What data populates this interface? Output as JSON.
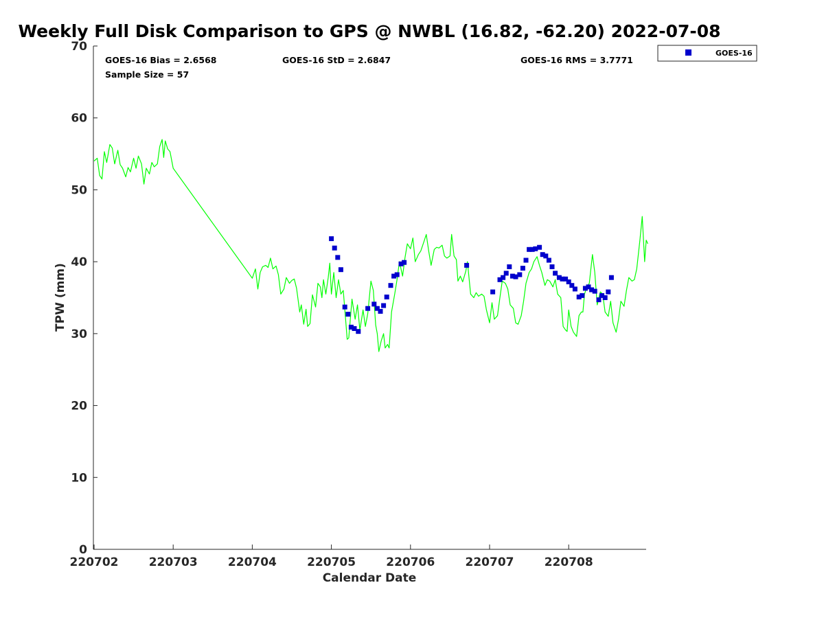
{
  "chart_data": {
    "type": "scatter",
    "title": "Weekly Full Disk Comparison to GPS @ NWBL (16.82, -62.20) 2022-07-08",
    "xlabel": "Calendar Date",
    "ylabel": "TPW (mm)",
    "xlim": [
      0.03,
      7.0
    ],
    "ylim": [
      0,
      70
    ],
    "x_tick_labels": [
      "220702",
      "220703",
      "220704",
      "220705",
      "220706",
      "220707",
      "220708"
    ],
    "x_tick_positions": [
      0,
      1,
      2,
      3,
      4,
      5,
      6
    ],
    "y_ticks": [
      0,
      10,
      20,
      30,
      40,
      50,
      60,
      70
    ],
    "stats": {
      "bias": "GOES-16 Bias = 2.6568",
      "std": "GOES-16 StD = 2.6847",
      "rms": "GOES-16 RMS = 3.7771",
      "sample": "Sample Size = 57"
    },
    "legend": {
      "label": "GOES-16",
      "placement": "top-right-outside"
    },
    "series": [
      {
        "name": "GPS",
        "type": "line",
        "color": "#00ff00",
        "points": [
          [
            0.0,
            54.0
          ],
          [
            0.04,
            54.4
          ],
          [
            0.07,
            52.0
          ],
          [
            0.1,
            51.5
          ],
          [
            0.13,
            55.3
          ],
          [
            0.16,
            53.8
          ],
          [
            0.2,
            56.3
          ],
          [
            0.23,
            55.8
          ],
          [
            0.26,
            53.6
          ],
          [
            0.3,
            55.5
          ],
          [
            0.33,
            53.5
          ],
          [
            0.36,
            53.0
          ],
          [
            0.4,
            51.8
          ],
          [
            0.43,
            53.1
          ],
          [
            0.46,
            52.5
          ],
          [
            0.5,
            54.4
          ],
          [
            0.53,
            53.0
          ],
          [
            0.56,
            54.7
          ],
          [
            0.6,
            53.6
          ],
          [
            0.63,
            50.8
          ],
          [
            0.66,
            53.0
          ],
          [
            0.7,
            52.2
          ],
          [
            0.73,
            53.8
          ],
          [
            0.76,
            53.2
          ],
          [
            0.8,
            53.6
          ],
          [
            0.83,
            56.0
          ],
          [
            0.86,
            57.0
          ],
          [
            0.88,
            54.5
          ],
          [
            0.9,
            56.8
          ],
          [
            0.93,
            55.7
          ],
          [
            0.96,
            55.3
          ],
          [
            1.0,
            53.0
          ],
          [
            2.0,
            37.7
          ],
          [
            2.04,
            39.0
          ],
          [
            2.07,
            36.2
          ],
          [
            2.1,
            38.5
          ],
          [
            2.13,
            39.3
          ],
          [
            2.17,
            39.5
          ],
          [
            2.2,
            39.2
          ],
          [
            2.23,
            40.5
          ],
          [
            2.26,
            39.0
          ],
          [
            2.3,
            39.4
          ],
          [
            2.33,
            38.2
          ],
          [
            2.36,
            35.5
          ],
          [
            2.4,
            36.2
          ],
          [
            2.43,
            37.8
          ],
          [
            2.47,
            37.0
          ],
          [
            2.5,
            37.4
          ],
          [
            2.53,
            37.6
          ],
          [
            2.56,
            36.3
          ],
          [
            2.6,
            33.0
          ],
          [
            2.62,
            34.0
          ],
          [
            2.65,
            31.3
          ],
          [
            2.68,
            33.4
          ],
          [
            2.7,
            31.0
          ],
          [
            2.73,
            31.4
          ],
          [
            2.76,
            35.4
          ],
          [
            2.8,
            33.7
          ],
          [
            2.83,
            37.0
          ],
          [
            2.86,
            36.5
          ],
          [
            2.88,
            35.0
          ],
          [
            2.9,
            37.5
          ],
          [
            2.93,
            35.5
          ],
          [
            2.96,
            37.8
          ],
          [
            2.98,
            39.8
          ],
          [
            3.0,
            35.5
          ],
          [
            3.03,
            38.5
          ],
          [
            3.06,
            35.0
          ],
          [
            3.09,
            37.5
          ],
          [
            3.12,
            35.5
          ],
          [
            3.15,
            36.0
          ],
          [
            3.18,
            32.0
          ],
          [
            3.2,
            29.2
          ],
          [
            3.22,
            29.4
          ],
          [
            3.26,
            34.8
          ],
          [
            3.3,
            32.0
          ],
          [
            3.33,
            34.0
          ],
          [
            3.36,
            30.5
          ],
          [
            3.4,
            33.3
          ],
          [
            3.43,
            31.0
          ],
          [
            3.46,
            32.8
          ],
          [
            3.5,
            37.3
          ],
          [
            3.53,
            36.0
          ],
          [
            3.56,
            31.2
          ],
          [
            3.58,
            30.0
          ],
          [
            3.6,
            27.5
          ],
          [
            3.63,
            29.0
          ],
          [
            3.66,
            30.0
          ],
          [
            3.68,
            28.0
          ],
          [
            3.71,
            28.5
          ],
          [
            3.73,
            28.0
          ],
          [
            3.76,
            33.0
          ],
          [
            3.8,
            35.5
          ],
          [
            3.83,
            37.5
          ],
          [
            3.86,
            40.0
          ],
          [
            3.9,
            38.0
          ],
          [
            3.93,
            40.5
          ],
          [
            3.96,
            42.5
          ],
          [
            4.0,
            41.8
          ],
          [
            4.03,
            43.3
          ],
          [
            4.06,
            40.0
          ],
          [
            4.1,
            41.0
          ],
          [
            4.13,
            41.5
          ],
          [
            4.17,
            42.8
          ],
          [
            4.2,
            43.8
          ],
          [
            4.23,
            41.5
          ],
          [
            4.26,
            39.5
          ],
          [
            4.3,
            41.7
          ],
          [
            4.33,
            42.0
          ],
          [
            4.36,
            41.9
          ],
          [
            4.4,
            42.3
          ],
          [
            4.43,
            40.8
          ],
          [
            4.46,
            40.5
          ],
          [
            4.5,
            40.8
          ],
          [
            4.52,
            43.8
          ],
          [
            4.55,
            40.8
          ],
          [
            4.58,
            40.3
          ],
          [
            4.6,
            37.3
          ],
          [
            4.63,
            38.0
          ],
          [
            4.66,
            37.2
          ],
          [
            4.7,
            38.7
          ],
          [
            4.72,
            40.0
          ],
          [
            4.76,
            35.5
          ],
          [
            4.8,
            35.0
          ],
          [
            4.83,
            35.7
          ],
          [
            4.86,
            35.2
          ],
          [
            4.9,
            35.5
          ],
          [
            4.93,
            35.2
          ],
          [
            4.96,
            33.3
          ],
          [
            5.0,
            31.5
          ],
          [
            5.03,
            34.3
          ],
          [
            5.06,
            32.0
          ],
          [
            5.1,
            32.5
          ],
          [
            5.13,
            35.0
          ],
          [
            5.16,
            37.3
          ],
          [
            5.2,
            37.0
          ],
          [
            5.23,
            36.2
          ],
          [
            5.26,
            34.0
          ],
          [
            5.3,
            33.5
          ],
          [
            5.33,
            31.5
          ],
          [
            5.36,
            31.3
          ],
          [
            5.4,
            32.5
          ],
          [
            5.43,
            34.5
          ],
          [
            5.46,
            37.0
          ],
          [
            5.5,
            38.5
          ],
          [
            5.53,
            39.0
          ],
          [
            5.56,
            40.0
          ],
          [
            5.6,
            40.7
          ],
          [
            5.63,
            39.5
          ],
          [
            5.66,
            38.5
          ],
          [
            5.7,
            36.7
          ],
          [
            5.73,
            37.5
          ],
          [
            5.76,
            37.3
          ],
          [
            5.8,
            36.5
          ],
          [
            5.83,
            37.5
          ],
          [
            5.86,
            35.5
          ],
          [
            5.9,
            35.0
          ],
          [
            5.93,
            31.0
          ],
          [
            5.96,
            30.5
          ],
          [
            5.98,
            30.3
          ],
          [
            6.0,
            33.3
          ],
          [
            6.03,
            31.0
          ],
          [
            6.06,
            30.2
          ],
          [
            6.1,
            29.6
          ],
          [
            6.13,
            32.5
          ],
          [
            6.16,
            33.0
          ],
          [
            6.18,
            33.0
          ],
          [
            6.2,
            35.5
          ],
          [
            6.23,
            36.5
          ],
          [
            6.26,
            37.0
          ],
          [
            6.3,
            41.0
          ],
          [
            6.33,
            38.5
          ],
          [
            6.36,
            34.0
          ],
          [
            6.4,
            35.8
          ],
          [
            6.43,
            35.5
          ],
          [
            6.46,
            33.0
          ],
          [
            6.5,
            32.4
          ],
          [
            6.53,
            34.5
          ],
          [
            6.56,
            31.5
          ],
          [
            6.6,
            30.2
          ],
          [
            6.63,
            32.0
          ],
          [
            6.66,
            34.5
          ],
          [
            6.7,
            33.8
          ],
          [
            6.73,
            36.0
          ],
          [
            6.76,
            37.8
          ],
          [
            6.8,
            37.3
          ],
          [
            6.83,
            37.5
          ],
          [
            6.86,
            39.0
          ],
          [
            6.9,
            43.0
          ],
          [
            6.93,
            46.3
          ],
          [
            6.96,
            40.0
          ],
          [
            6.98,
            43.0
          ],
          [
            7.0,
            42.5
          ]
        ]
      },
      {
        "name": "GOES-16",
        "type": "scatter",
        "color": "#0000cc",
        "marker": "square",
        "points": [
          [
            3.0,
            43.2
          ],
          [
            3.04,
            41.9
          ],
          [
            3.08,
            40.6
          ],
          [
            3.12,
            38.9
          ],
          [
            3.17,
            33.7
          ],
          [
            3.21,
            32.7
          ],
          [
            3.25,
            30.9
          ],
          [
            3.29,
            30.7
          ],
          [
            3.34,
            30.3
          ],
          [
            3.46,
            33.5
          ],
          [
            3.54,
            34.1
          ],
          [
            3.58,
            33.5
          ],
          [
            3.62,
            33.1
          ],
          [
            3.66,
            33.9
          ],
          [
            3.7,
            35.1
          ],
          [
            3.75,
            36.7
          ],
          [
            3.79,
            38.0
          ],
          [
            3.83,
            38.2
          ],
          [
            3.88,
            39.7
          ],
          [
            3.92,
            39.9
          ],
          [
            4.71,
            39.5
          ],
          [
            5.04,
            35.8
          ],
          [
            5.13,
            37.5
          ],
          [
            5.17,
            37.8
          ],
          [
            5.21,
            38.4
          ],
          [
            5.25,
            39.3
          ],
          [
            5.29,
            38.0
          ],
          [
            5.33,
            37.9
          ],
          [
            5.38,
            38.2
          ],
          [
            5.42,
            39.1
          ],
          [
            5.46,
            40.2
          ],
          [
            5.5,
            41.7
          ],
          [
            5.54,
            41.7
          ],
          [
            5.58,
            41.8
          ],
          [
            5.63,
            42.0
          ],
          [
            5.67,
            41.0
          ],
          [
            5.71,
            40.8
          ],
          [
            5.75,
            40.2
          ],
          [
            5.79,
            39.3
          ],
          [
            5.83,
            38.4
          ],
          [
            5.88,
            37.8
          ],
          [
            5.92,
            37.6
          ],
          [
            5.96,
            37.6
          ],
          [
            6.0,
            37.2
          ],
          [
            6.04,
            36.7
          ],
          [
            6.08,
            36.2
          ],
          [
            6.13,
            35.1
          ],
          [
            6.17,
            35.3
          ],
          [
            6.21,
            36.3
          ],
          [
            6.25,
            36.5
          ],
          [
            6.29,
            36.1
          ],
          [
            6.33,
            35.9
          ],
          [
            6.38,
            34.7
          ],
          [
            6.42,
            35.3
          ],
          [
            6.46,
            35.0
          ],
          [
            6.5,
            35.8
          ],
          [
            6.54,
            37.8
          ]
        ]
      }
    ]
  }
}
